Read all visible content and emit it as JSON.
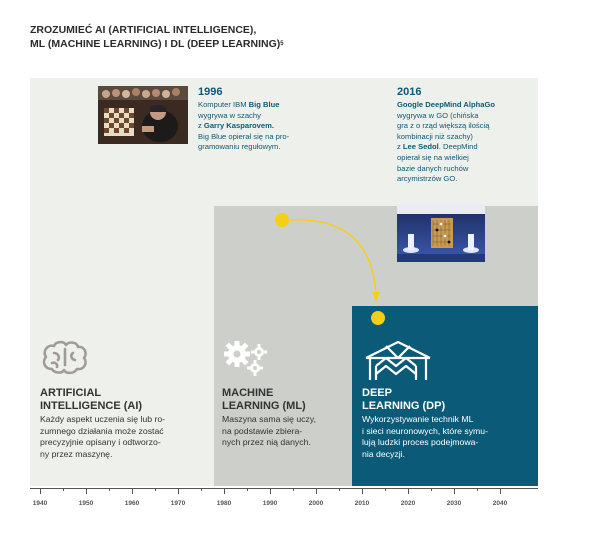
{
  "title": {
    "line1": "ZROZUMIEĆ AI (ARTIFICIAL INTELLIGENCE),",
    "line2": "ML (MACHINE LEARNING) I DL (DEEP LEARNING)",
    "footnote": "5"
  },
  "events": [
    {
      "year": "1996",
      "lines": [
        [
          {
            "t": "Komputer IBM "
          },
          {
            "t": "Big Blue",
            "b": true
          }
        ],
        [
          {
            "t": "wygrywa w szachy"
          }
        ],
        [
          {
            "t": "z "
          },
          {
            "t": "Garry Kasparovem.",
            "b": true
          }
        ],
        [
          {
            "t": "Big Blue opierał się na pro-"
          }
        ],
        [
          {
            "t": "gramowaniu regułowym."
          }
        ]
      ]
    },
    {
      "year": "2016",
      "lines": [
        [
          {
            "t": "Google DeepMind AlphaGo",
            "b": true
          }
        ],
        [
          {
            "t": "wygrywa w GO (chińska"
          }
        ],
        [
          {
            "t": "gra z o rząd większą ilością"
          }
        ],
        [
          {
            "t": "kombinacji niż szachy)"
          }
        ],
        [
          {
            "t": "z "
          },
          {
            "t": "Lee Sedol",
            "b": true
          },
          {
            "t": ". DeepMind"
          }
        ],
        [
          {
            "t": "opierał się na wielkiej"
          }
        ],
        [
          {
            "t": "bazie danych ruchów"
          }
        ],
        [
          {
            "t": "arcymistrzów GO."
          }
        ]
      ]
    }
  ],
  "sections": [
    {
      "icon": "brain-icon",
      "title_lines": [
        "ARTIFICIAL",
        "INTELLIGENCE (AI)"
      ],
      "desc_lines": [
        "Każdy aspekt uczenia się lub ro-",
        "zumnego działania może zostać",
        "precyzyjnie opisany i odtworzo-",
        "ny przez maszynę."
      ]
    },
    {
      "icon": "gears-icon",
      "title_lines": [
        "MACHINE",
        "LEARNING (ML)"
      ],
      "desc_lines": [
        "Maszyna sama się uczy,",
        "na podstawie zbiera-",
        "nych przez nią danych."
      ]
    },
    {
      "icon": "neural-network-icon",
      "title_lines": [
        "DEEP",
        "LEARNING (DP)"
      ],
      "desc_lines": [
        "Wykorzystywanie technik ML",
        "i sieci neuronowych, które symu-",
        "lują ludzki proces podejmowa-",
        "nia decyzji."
      ]
    }
  ],
  "timeline": {
    "start": 1940,
    "step": 10,
    "labels": [
      "1940",
      "1950",
      "1960",
      "1970",
      "1980",
      "1990",
      "2000",
      "2010",
      "2020",
      "2030",
      "2040"
    ]
  },
  "colors": {
    "accent": "#f5cf16",
    "dl_band": "#0b5a78",
    "ml_band": "#cdcfca",
    "ai_band": "#eef0eb",
    "text_blue": "#0b5a78"
  }
}
